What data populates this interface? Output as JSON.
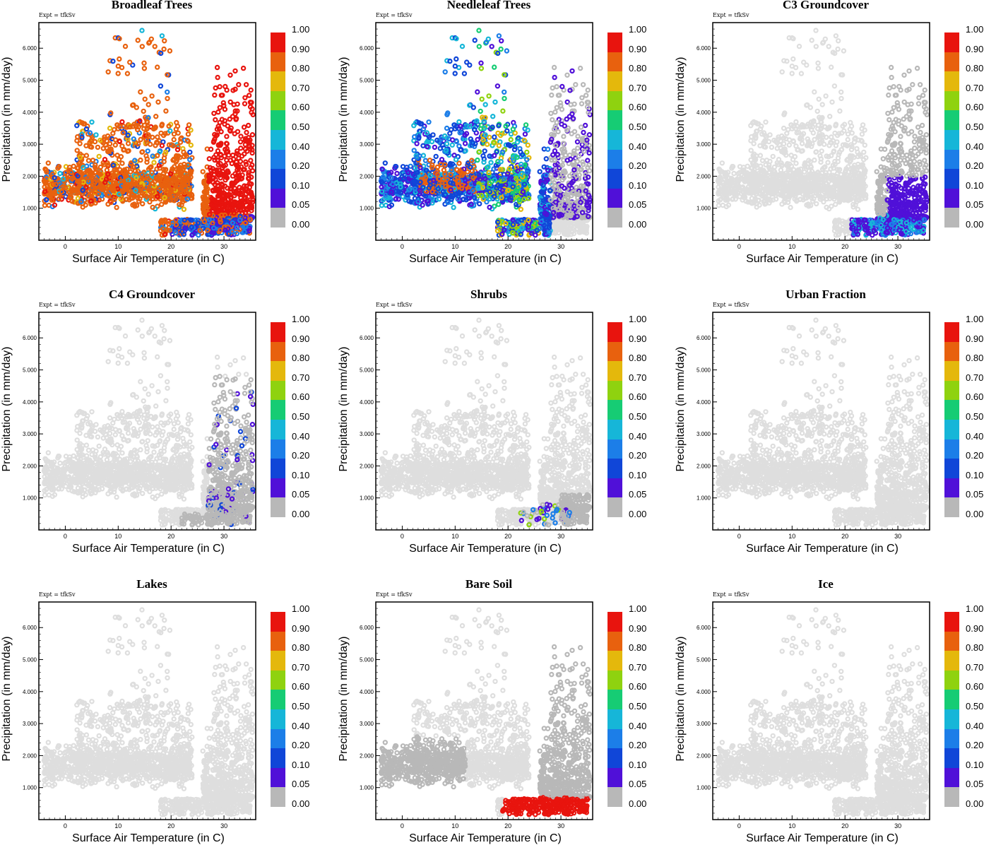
{
  "figure": {
    "experiment_label": "Expt = tfkSv",
    "xlabel": "Surface Air Temperature (in C)",
    "ylabel": "Precipitation (in mm/day)"
  },
  "colorbar": {
    "levels": [
      "1.00",
      "0.90",
      "0.80",
      "0.70",
      "0.60",
      "0.50",
      "0.40",
      "0.20",
      "0.10",
      "0.05",
      "0.00"
    ],
    "colors": [
      "#e8140e",
      "#e8610e",
      "#e4b80c",
      "#8fd20f",
      "#16cc74",
      "#16b6d8",
      "#1c7ee8",
      "#1046d8",
      "#5010d8",
      "#b8b8b8"
    ]
  },
  "axis_colors": {
    "light_gray": "#dedede",
    "mid_gray": "#b0b0b0"
  },
  "chart_data": [
    {
      "type": "scatter",
      "id": "broadleaf",
      "title": "Broadleaf Trees",
      "xlabel": "Surface Air Temperature (in C)",
      "ylabel": "Precipitation (in mm/day)",
      "xlim": [
        -5,
        36
      ],
      "ylim": [
        0,
        6.8
      ],
      "xticks": [
        "0",
        "10",
        "20",
        "30"
      ],
      "yticks": [
        "1.000",
        "2.000",
        "3.000",
        "4.000",
        "5.000",
        "6.000"
      ],
      "pattern": "broadleaf"
    },
    {
      "type": "scatter",
      "id": "needleleaf",
      "title": "Needleleaf Trees",
      "xlabel": "Surface Air Temperature (in C)",
      "ylabel": "Precipitation (in mm/day)",
      "xlim": [
        -5,
        36
      ],
      "ylim": [
        0,
        6.8
      ],
      "xticks": [
        "0",
        "10",
        "20",
        "30"
      ],
      "yticks": [
        "1.000",
        "2.000",
        "3.000",
        "4.000",
        "5.000",
        "6.000"
      ],
      "pattern": "needleleaf"
    },
    {
      "type": "scatter",
      "id": "c3",
      "title": "C3 Groundcover",
      "xlabel": "Surface Air Temperature (in C)",
      "ylabel": "Precipitation (in mm/day)",
      "xlim": [
        -5,
        36
      ],
      "ylim": [
        0,
        6.8
      ],
      "xticks": [
        "0",
        "10",
        "20",
        "30"
      ],
      "yticks": [
        "1.000",
        "2.000",
        "3.000",
        "4.000",
        "5.000",
        "6.000"
      ],
      "pattern": "c3"
    },
    {
      "type": "scatter",
      "id": "c4",
      "title": "C4 Groundcover",
      "xlabel": "Surface Air Temperature (in C)",
      "ylabel": "Precipitation (in mm/day)",
      "xlim": [
        -5,
        36
      ],
      "ylim": [
        0,
        6.8
      ],
      "xticks": [
        "0",
        "10",
        "20",
        "30"
      ],
      "yticks": [
        "1.000",
        "2.000",
        "3.000",
        "4.000",
        "5.000",
        "6.000"
      ],
      "pattern": "c4"
    },
    {
      "type": "scatter",
      "id": "shrubs",
      "title": "Shrubs",
      "xlabel": "Surface Air Temperature (in C)",
      "ylabel": "Precipitation (in mm/day)",
      "xlim": [
        -5,
        36
      ],
      "ylim": [
        0,
        6.8
      ],
      "xticks": [
        "0",
        "10",
        "20",
        "30"
      ],
      "yticks": [
        "1.000",
        "2.000",
        "3.000",
        "4.000",
        "5.000",
        "6.000"
      ],
      "pattern": "shrubs"
    },
    {
      "type": "scatter",
      "id": "urban",
      "title": "Urban Fraction",
      "xlabel": "Surface Air Temperature (in C)",
      "ylabel": "Precipitation (in mm/day)",
      "xlim": [
        -5,
        36
      ],
      "ylim": [
        0,
        6.8
      ],
      "xticks": [
        "0",
        "10",
        "20",
        "30"
      ],
      "yticks": [
        "1.000",
        "2.000",
        "3.000",
        "4.000",
        "5.000",
        "6.000"
      ],
      "pattern": "none"
    },
    {
      "type": "scatter",
      "id": "lakes",
      "title": "Lakes",
      "xlabel": "Surface Air Temperature (in C)",
      "ylabel": "Precipitation (in mm/day)",
      "xlim": [
        -5,
        36
      ],
      "ylim": [
        0,
        6.8
      ],
      "xticks": [
        "0",
        "10",
        "20",
        "30"
      ],
      "yticks": [
        "1.000",
        "2.000",
        "3.000",
        "4.000",
        "5.000",
        "6.000"
      ],
      "pattern": "none"
    },
    {
      "type": "scatter",
      "id": "baresoil",
      "title": "Bare Soil",
      "xlabel": "Surface Air Temperature (in C)",
      "ylabel": "Precipitation (in mm/day)",
      "xlim": [
        -5,
        36
      ],
      "ylim": [
        0,
        6.8
      ],
      "xticks": [
        "0",
        "10",
        "20",
        "30"
      ],
      "yticks": [
        "1.000",
        "2.000",
        "3.000",
        "4.000",
        "5.000",
        "6.000"
      ],
      "pattern": "baresoil"
    },
    {
      "type": "scatter",
      "id": "ice",
      "title": "Ice",
      "xlabel": "Surface Air Temperature (in C)",
      "ylabel": "Precipitation (in mm/day)",
      "xlim": [
        -5,
        36
      ],
      "ylim": [
        0,
        6.8
      ],
      "xticks": [
        "0",
        "10",
        "20",
        "30"
      ],
      "yticks": [
        "1.000",
        "2.000",
        "3.000",
        "4.000",
        "5.000",
        "6.000"
      ],
      "pattern": "none"
    }
  ]
}
